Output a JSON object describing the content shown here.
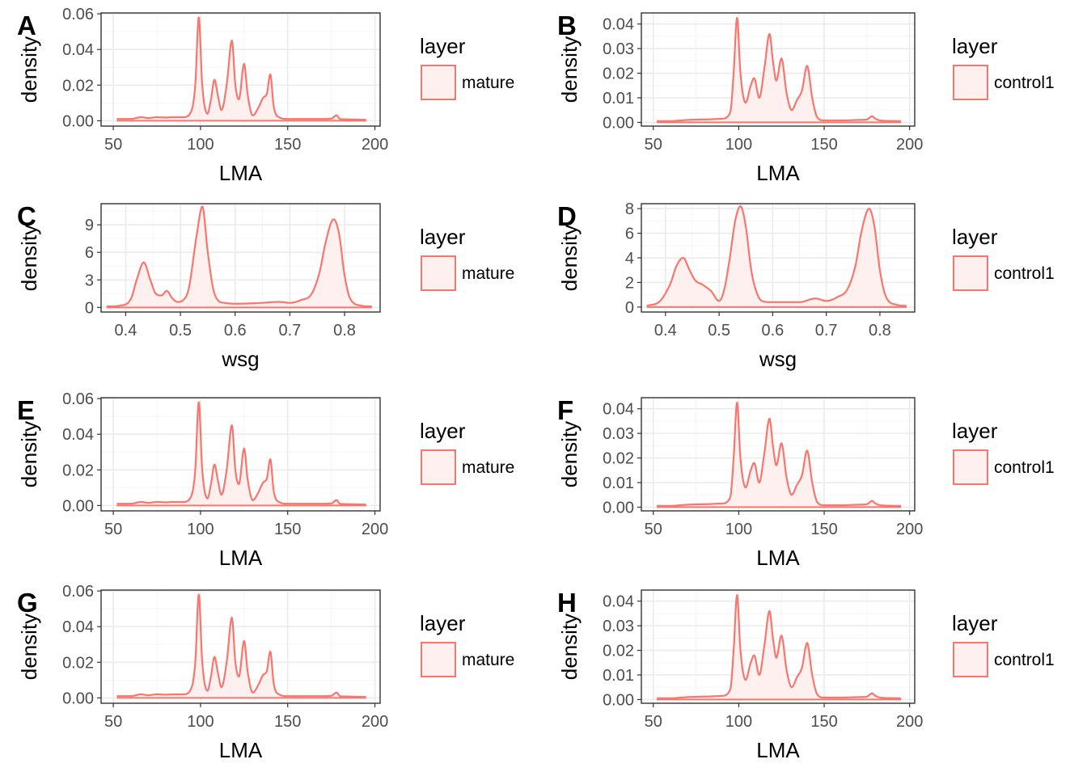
{
  "style": {
    "line_color": "#F8766D",
    "fill_color": "#FEF0EF",
    "grid_major": "#EBEBEB",
    "grid_minor": "#F5F5F5",
    "panel_border": "#333333",
    "tick_text": "#4D4D4D"
  },
  "chart_data": [
    {
      "tag": "A",
      "type": "area",
      "x_var": "LMA",
      "xlabel": "LMA",
      "ylabel": "density",
      "xlim": [
        43,
        203
      ],
      "ylim": [
        -0.003,
        0.0605
      ],
      "xticks": [
        50,
        100,
        150,
        200
      ],
      "yticks": [
        0.0,
        0.02,
        0.04,
        0.06
      ],
      "ytick_labels": [
        "0.00",
        "0.02",
        "0.04",
        "0.06"
      ],
      "legend_title": "layer",
      "legend_label": "mature",
      "series": [
        {
          "name": "mature",
          "x": [
            52,
            60,
            66,
            70,
            75,
            80,
            85,
            90,
            94,
            97,
            99,
            101,
            104,
            106,
            108,
            110,
            112,
            115,
            118,
            120,
            122,
            125,
            127,
            130,
            133,
            136,
            138,
            140,
            142,
            145,
            150,
            160,
            170,
            175,
            178,
            180,
            183,
            195
          ],
          "y": [
            0.001,
            0.001,
            0.002,
            0.0015,
            0.002,
            0.0018,
            0.002,
            0.002,
            0.004,
            0.02,
            0.058,
            0.02,
            0.004,
            0.012,
            0.023,
            0.014,
            0.006,
            0.02,
            0.045,
            0.02,
            0.012,
            0.032,
            0.015,
            0.003,
            0.007,
            0.013,
            0.015,
            0.026,
            0.008,
            0.002,
            0.001,
            0.001,
            0.001,
            0.0012,
            0.003,
            0.001,
            0.0008,
            0.0005
          ]
        }
      ]
    },
    {
      "tag": "B",
      "type": "area",
      "x_var": "LMA",
      "xlabel": "LMA",
      "ylabel": "density",
      "xlim": [
        43,
        203
      ],
      "ylim": [
        -0.0015,
        0.0445
      ],
      "xticks": [
        50,
        100,
        150,
        200
      ],
      "yticks": [
        0.0,
        0.01,
        0.02,
        0.03,
        0.04
      ],
      "ytick_labels": [
        "0.00",
        "0.01",
        "0.02",
        "0.03",
        "0.04"
      ],
      "legend_title": "layer",
      "legend_label": "control1",
      "series": [
        {
          "name": "control1",
          "x": [
            52,
            60,
            66,
            70,
            80,
            90,
            95,
            97,
            99,
            101,
            104,
            107,
            109,
            112,
            115,
            118,
            120,
            122,
            125,
            128,
            131,
            134,
            137,
            140,
            143,
            146,
            150,
            160,
            170,
            175,
            178,
            180,
            183,
            195
          ],
          "y": [
            0.0005,
            0.0005,
            0.0008,
            0.001,
            0.0012,
            0.0015,
            0.004,
            0.02,
            0.0425,
            0.02,
            0.008,
            0.015,
            0.018,
            0.01,
            0.022,
            0.036,
            0.025,
            0.017,
            0.026,
            0.012,
            0.005,
            0.009,
            0.013,
            0.023,
            0.01,
            0.002,
            0.0008,
            0.0008,
            0.001,
            0.0012,
            0.0025,
            0.0015,
            0.0008,
            0.0005
          ]
        }
      ]
    },
    {
      "tag": "C",
      "type": "area",
      "x_var": "wsg",
      "xlabel": "wsg",
      "ylabel": "density",
      "xlim": [
        0.355,
        0.865
      ],
      "ylim": [
        -0.5,
        11.3
      ],
      "xticks": [
        0.4,
        0.5,
        0.6,
        0.7,
        0.8
      ],
      "yticks": [
        0,
        3,
        6,
        9
      ],
      "ytick_labels": [
        "0",
        "3",
        "6",
        "9"
      ],
      "legend_title": "layer",
      "legend_label": "mature",
      "series": [
        {
          "name": "mature",
          "x": [
            0.365,
            0.39,
            0.41,
            0.42,
            0.433,
            0.445,
            0.455,
            0.465,
            0.475,
            0.485,
            0.495,
            0.505,
            0.515,
            0.53,
            0.54,
            0.55,
            0.56,
            0.57,
            0.58,
            0.6,
            0.65,
            0.68,
            0.7,
            0.72,
            0.74,
            0.755,
            0.765,
            0.78,
            0.79,
            0.8,
            0.81,
            0.83,
            0.85
          ],
          "y": [
            0.1,
            0.2,
            1.0,
            3.0,
            4.9,
            3.0,
            1.5,
            1.3,
            1.8,
            1.0,
            0.6,
            0.8,
            2.0,
            8.0,
            11.0,
            6.0,
            2.0,
            0.7,
            0.5,
            0.4,
            0.5,
            0.6,
            0.5,
            0.8,
            1.5,
            4.0,
            7.0,
            9.6,
            8.0,
            3.5,
            1.0,
            0.2,
            0.1
          ]
        }
      ]
    },
    {
      "tag": "D",
      "type": "area",
      "x_var": "wsg",
      "xlabel": "wsg",
      "ylabel": "density",
      "xlim": [
        0.355,
        0.865
      ],
      "ylim": [
        -0.4,
        8.4
      ],
      "xticks": [
        0.4,
        0.5,
        0.6,
        0.7,
        0.8
      ],
      "yticks": [
        0,
        2,
        4,
        6,
        8
      ],
      "ytick_labels": [
        "0",
        "2",
        "4",
        "6",
        "8"
      ],
      "legend_title": "layer",
      "legend_label": "control1",
      "series": [
        {
          "name": "control1",
          "x": [
            0.365,
            0.39,
            0.41,
            0.42,
            0.433,
            0.445,
            0.455,
            0.47,
            0.485,
            0.5,
            0.51,
            0.52,
            0.53,
            0.54,
            0.55,
            0.56,
            0.57,
            0.58,
            0.6,
            0.65,
            0.68,
            0.7,
            0.72,
            0.74,
            0.755,
            0.765,
            0.78,
            0.79,
            0.8,
            0.81,
            0.83,
            0.85
          ],
          "y": [
            0.1,
            0.5,
            2.0,
            3.3,
            4.0,
            3.0,
            2.2,
            1.8,
            1.3,
            0.5,
            1.5,
            4.0,
            7.0,
            8.2,
            6.5,
            3.0,
            1.2,
            0.5,
            0.4,
            0.4,
            0.7,
            0.5,
            0.8,
            1.5,
            3.5,
            6.0,
            8.0,
            6.5,
            3.0,
            1.0,
            0.2,
            0.1
          ]
        }
      ]
    },
    {
      "tag": "E",
      "type": "area",
      "x_var": "LMA",
      "xlabel": "LMA",
      "ylabel": "density",
      "xlim": [
        43,
        203
      ],
      "ylim": [
        -0.003,
        0.0605
      ],
      "xticks": [
        50,
        100,
        150,
        200
      ],
      "yticks": [
        0.0,
        0.02,
        0.04,
        0.06
      ],
      "ytick_labels": [
        "0.00",
        "0.02",
        "0.04",
        "0.06"
      ],
      "legend_title": "layer",
      "legend_label": "mature",
      "series": [
        {
          "name": "mature",
          "x": [
            52,
            60,
            66,
            70,
            75,
            80,
            85,
            90,
            94,
            97,
            99,
            101,
            104,
            106,
            108,
            110,
            112,
            115,
            118,
            120,
            122,
            125,
            127,
            130,
            133,
            136,
            138,
            140,
            142,
            145,
            150,
            160,
            170,
            175,
            178,
            180,
            183,
            195
          ],
          "y": [
            0.001,
            0.001,
            0.002,
            0.0015,
            0.002,
            0.0018,
            0.002,
            0.002,
            0.004,
            0.02,
            0.058,
            0.02,
            0.004,
            0.012,
            0.023,
            0.014,
            0.006,
            0.02,
            0.045,
            0.02,
            0.012,
            0.032,
            0.015,
            0.003,
            0.007,
            0.013,
            0.015,
            0.026,
            0.008,
            0.002,
            0.001,
            0.001,
            0.001,
            0.0012,
            0.003,
            0.001,
            0.0008,
            0.0005
          ]
        }
      ]
    },
    {
      "tag": "F",
      "type": "area",
      "x_var": "LMA",
      "xlabel": "LMA",
      "ylabel": "density",
      "xlim": [
        43,
        203
      ],
      "ylim": [
        -0.0015,
        0.0445
      ],
      "xticks": [
        50,
        100,
        150,
        200
      ],
      "yticks": [
        0.0,
        0.01,
        0.02,
        0.03,
        0.04
      ],
      "ytick_labels": [
        "0.00",
        "0.01",
        "0.02",
        "0.03",
        "0.04"
      ],
      "legend_title": "layer",
      "legend_label": "control1",
      "series": [
        {
          "name": "control1",
          "x": [
            52,
            60,
            66,
            70,
            80,
            90,
            95,
            97,
            99,
            101,
            104,
            107,
            109,
            112,
            115,
            118,
            120,
            122,
            125,
            128,
            131,
            134,
            137,
            140,
            143,
            146,
            150,
            160,
            170,
            175,
            178,
            180,
            183,
            195
          ],
          "y": [
            0.0005,
            0.0005,
            0.0008,
            0.001,
            0.0012,
            0.0015,
            0.004,
            0.02,
            0.0425,
            0.02,
            0.008,
            0.015,
            0.018,
            0.01,
            0.022,
            0.036,
            0.025,
            0.017,
            0.026,
            0.012,
            0.005,
            0.009,
            0.013,
            0.023,
            0.01,
            0.002,
            0.0008,
            0.0008,
            0.001,
            0.0012,
            0.0025,
            0.0015,
            0.0008,
            0.0005
          ]
        }
      ]
    },
    {
      "tag": "G",
      "type": "area",
      "x_var": "LMA",
      "xlabel": "LMA",
      "ylabel": "density",
      "xlim": [
        43,
        203
      ],
      "ylim": [
        -0.003,
        0.0605
      ],
      "xticks": [
        50,
        100,
        150,
        200
      ],
      "yticks": [
        0.0,
        0.02,
        0.04,
        0.06
      ],
      "ytick_labels": [
        "0.00",
        "0.02",
        "0.04",
        "0.06"
      ],
      "legend_title": "layer",
      "legend_label": "mature",
      "series": [
        {
          "name": "mature",
          "x": [
            52,
            60,
            66,
            70,
            75,
            80,
            85,
            90,
            94,
            97,
            99,
            101,
            104,
            106,
            108,
            110,
            112,
            115,
            118,
            120,
            122,
            125,
            127,
            130,
            133,
            136,
            138,
            140,
            142,
            145,
            150,
            160,
            170,
            175,
            178,
            180,
            183,
            195
          ],
          "y": [
            0.001,
            0.001,
            0.002,
            0.0015,
            0.002,
            0.0018,
            0.002,
            0.002,
            0.004,
            0.02,
            0.058,
            0.02,
            0.004,
            0.012,
            0.023,
            0.014,
            0.006,
            0.02,
            0.045,
            0.02,
            0.012,
            0.032,
            0.015,
            0.003,
            0.007,
            0.013,
            0.015,
            0.026,
            0.008,
            0.002,
            0.001,
            0.001,
            0.001,
            0.0012,
            0.003,
            0.001,
            0.0008,
            0.0005
          ]
        }
      ]
    },
    {
      "tag": "H",
      "type": "area",
      "x_var": "LMA",
      "xlabel": "LMA",
      "ylabel": "density",
      "xlim": [
        43,
        203
      ],
      "ylim": [
        -0.0015,
        0.0445
      ],
      "xticks": [
        50,
        100,
        150,
        200
      ],
      "yticks": [
        0.0,
        0.01,
        0.02,
        0.03,
        0.04
      ],
      "ytick_labels": [
        "0.00",
        "0.01",
        "0.02",
        "0.03",
        "0.04"
      ],
      "legend_title": "layer",
      "legend_label": "control1",
      "series": [
        {
          "name": "control1",
          "x": [
            52,
            60,
            66,
            70,
            80,
            90,
            95,
            97,
            99,
            101,
            104,
            107,
            109,
            112,
            115,
            118,
            120,
            122,
            125,
            128,
            131,
            134,
            137,
            140,
            143,
            146,
            150,
            160,
            170,
            175,
            178,
            180,
            183,
            195
          ],
          "y": [
            0.0005,
            0.0005,
            0.0008,
            0.001,
            0.0012,
            0.0015,
            0.004,
            0.02,
            0.0425,
            0.02,
            0.008,
            0.015,
            0.018,
            0.01,
            0.022,
            0.036,
            0.025,
            0.017,
            0.026,
            0.012,
            0.005,
            0.009,
            0.013,
            0.023,
            0.01,
            0.002,
            0.0008,
            0.0008,
            0.001,
            0.0012,
            0.0025,
            0.0015,
            0.0008,
            0.0005
          ]
        }
      ]
    }
  ]
}
